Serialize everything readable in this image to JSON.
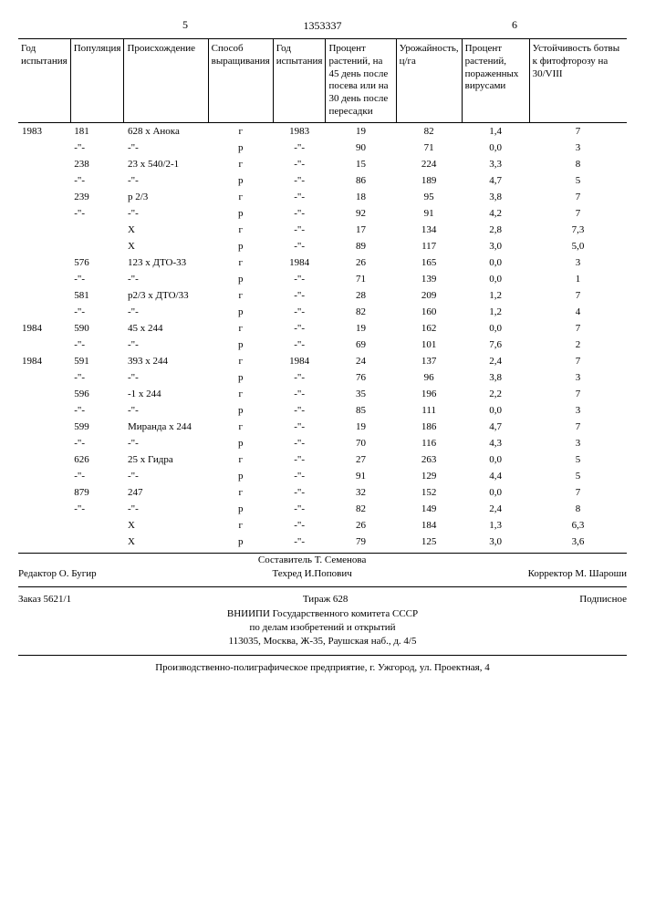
{
  "page_left": "5",
  "page_right": "6",
  "doc_number": "1353337",
  "columns": [
    "Год испытания",
    "Популяция",
    "Происхождение",
    "Способ выращивания",
    "Год испытания",
    "Процент растений, на 45 день после посева или на 30 день после пересадки",
    "Урожайность, ц/га",
    "Процент растений, пораженных вирусами",
    "Устойчивость ботвы к фитофторозу на 30/VIII"
  ],
  "rows": [
    [
      "1983",
      "181",
      "628 х Анока",
      "г",
      "1983",
      "19",
      "82",
      "1,4",
      "7"
    ],
    [
      "",
      "-\"-",
      "-\"-",
      "р",
      "-\"-",
      "90",
      "71",
      "0,0",
      "3"
    ],
    [
      "",
      "238",
      "23 х 540/2-1",
      "г",
      "-\"-",
      "15",
      "224",
      "3,3",
      "8"
    ],
    [
      "",
      "-\"-",
      "-\"-",
      "р",
      "-\"-",
      "86",
      "189",
      "4,7",
      "5"
    ],
    [
      "",
      "239",
      "р 2/3",
      "г",
      "-\"-",
      "18",
      "95",
      "3,8",
      "7"
    ],
    [
      "",
      "-\"-",
      "-\"-",
      "р",
      "-\"-",
      "92",
      "91",
      "4,2",
      "7"
    ],
    [
      "",
      "",
      "X",
      "г",
      "-\"-",
      "17",
      "134",
      "2,8",
      "7,3"
    ],
    [
      "",
      "",
      "X",
      "р",
      "-\"-",
      "89",
      "117",
      "3,0",
      "5,0"
    ],
    [
      "",
      "576",
      "123 х ДТО-33",
      "г",
      "1984",
      "26",
      "165",
      "0,0",
      "3"
    ],
    [
      "",
      "-\"-",
      "-\"-",
      "р",
      "-\"-",
      "71",
      "139",
      "0,0",
      "1"
    ],
    [
      "",
      "581",
      "р2/3 х ДТО/33",
      "г",
      "-\"-",
      "28",
      "209",
      "1,2",
      "7"
    ],
    [
      "",
      "-\"-",
      "-\"-",
      "р",
      "-\"-",
      "82",
      "160",
      "1,2",
      "4"
    ],
    [
      "1984",
      "590",
      "45 х 244",
      "г",
      "-\"-",
      "19",
      "162",
      "0,0",
      "7"
    ],
    [
      "",
      "-\"-",
      "-\"-",
      "р",
      "-\"-",
      "69",
      "101",
      "7,6",
      "2"
    ],
    [
      "1984",
      "591",
      "393 х 244",
      "г",
      "1984",
      "24",
      "137",
      "2,4",
      "7"
    ],
    [
      "",
      "-\"-",
      "-\"-",
      "р",
      "-\"-",
      "76",
      "96",
      "3,8",
      "3"
    ],
    [
      "",
      "596",
      "-1 х 244",
      "г",
      "-\"-",
      "35",
      "196",
      "2,2",
      "7"
    ],
    [
      "",
      "-\"-",
      "-\"-",
      "р",
      "-\"-",
      "85",
      "111",
      "0,0",
      "3"
    ],
    [
      "",
      "599",
      "Миранда х 244",
      "г",
      "-\"-",
      "19",
      "186",
      "4,7",
      "7"
    ],
    [
      "",
      "-\"-",
      "-\"-",
      "р",
      "-\"-",
      "70",
      "116",
      "4,3",
      "3"
    ],
    [
      "",
      "626",
      "25 х Гидра",
      "г",
      "-\"-",
      "27",
      "263",
      "0,0",
      "5"
    ],
    [
      "",
      "-\"-",
      "-\"-",
      "р",
      "-\"-",
      "91",
      "129",
      "4,4",
      "5"
    ],
    [
      "",
      "879",
      "247",
      "г",
      "-\"-",
      "32",
      "152",
      "0,0",
      "7"
    ],
    [
      "",
      "-\"-",
      "-\"-",
      "р",
      "-\"-",
      "82",
      "149",
      "2,4",
      "8"
    ],
    [
      "",
      "",
      "X",
      "г",
      "-\"-",
      "26",
      "184",
      "1,3",
      "6,3"
    ],
    [
      "",
      "",
      "X",
      "р",
      "-\"-",
      "79",
      "125",
      "3,0",
      "3,6"
    ]
  ],
  "footer": {
    "editor": "Редактор О. Бугир",
    "compiler": "Составитель Т. Семенова",
    "techred": "Техред И.Попович",
    "corrector": "Корректор М. Шароши",
    "order": "Заказ 5621/1",
    "tirazh": "Тираж 628",
    "podpisnoe": "Подписное",
    "org1": "ВНИИПИ Государственного комитета СССР",
    "org2": "по делам изобретений и открытий",
    "addr1": "113035, Москва, Ж-35, Раушская наб., д. 4/5",
    "addr2": "Производственно-полиграфическое предприятие, г. Ужгород, ул. Проектная, 4"
  }
}
